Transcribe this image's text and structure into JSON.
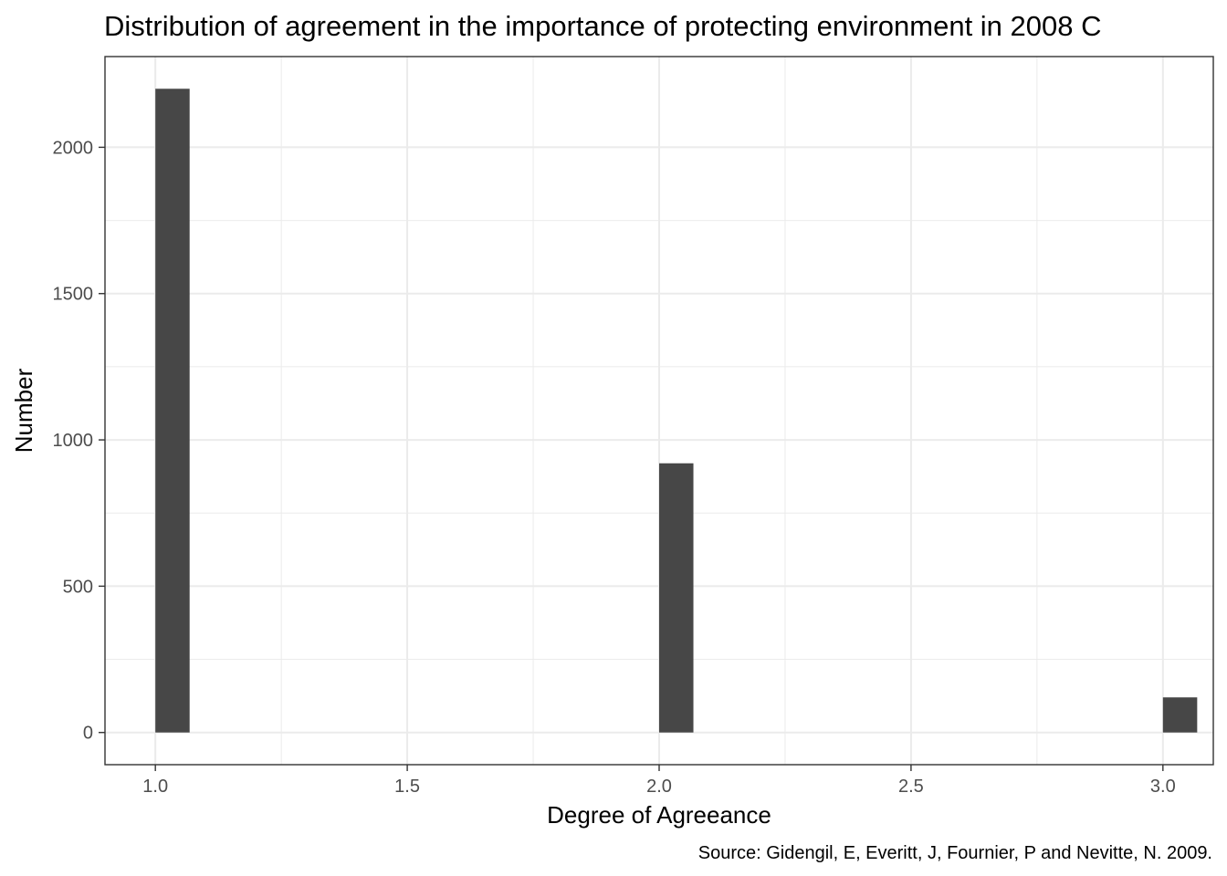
{
  "chart_data": {
    "type": "bar",
    "title": "Distribution of agreement in the importance of protecting environment in 2008 C",
    "xlabel": "Degree of Agreeance",
    "ylabel": "Number",
    "caption": "Source: Gidengil, E, Everitt, J, Fournier, P and Nevitte, N. 2009.",
    "x": [
      1.0,
      2.0,
      3.0
    ],
    "values": [
      2200,
      920,
      120
    ],
    "xlim": [
      0.9,
      3.1
    ],
    "ylim": [
      -110,
      2310
    ],
    "x_ticks": [
      {
        "value": 1.0,
        "label": "1.0"
      },
      {
        "value": 1.5,
        "label": "1.5"
      },
      {
        "value": 2.0,
        "label": "2.0"
      },
      {
        "value": 2.5,
        "label": "2.5"
      },
      {
        "value": 3.0,
        "label": "3.0"
      }
    ],
    "y_ticks": [
      {
        "value": 0,
        "label": "0"
      },
      {
        "value": 500,
        "label": "500"
      },
      {
        "value": 1000,
        "label": "1000"
      },
      {
        "value": 1500,
        "label": "1500"
      },
      {
        "value": 2000,
        "label": "2000"
      }
    ],
    "grid": true,
    "bar_color": "#474747",
    "grid_color": "#ebebeb",
    "panel_border_color": "#333333"
  }
}
